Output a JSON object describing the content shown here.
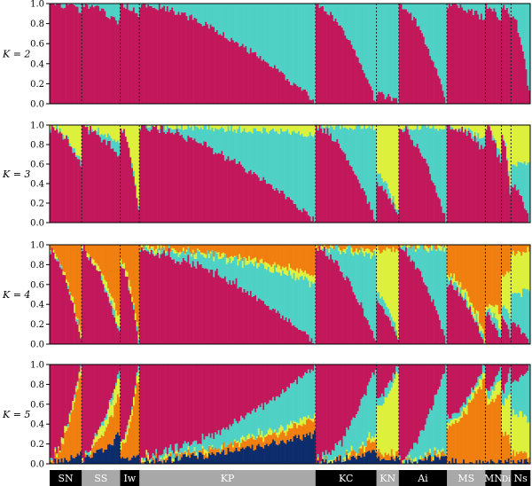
{
  "colors": {
    "magenta": "#c2185b",
    "cyan": "#4fd1c5",
    "yellow": "#dcf03c",
    "orange": "#f07f0f",
    "navy": "#0c2c6b",
    "black": "#000000",
    "gray": "#a8a8a8"
  },
  "chart_data": [
    {
      "type": "bar",
      "stacked": true,
      "panel_label": "K = 2",
      "yticks": [
        "0.0",
        "0.2",
        "0.4",
        "0.6",
        "0.8",
        "1.0"
      ],
      "ylim": [
        0,
        1
      ],
      "series_colors": [
        "#c2185b",
        "#4fd1c5"
      ],
      "populations": [
        {
          "name": "SN",
          "n": 20,
          "mix": [
            [
              0.99,
              0.01
            ],
            [
              0.93,
              0.07
            ]
          ]
        },
        {
          "name": "SS",
          "n": 24,
          "mix": [
            [
              0.99,
              0.01
            ],
            [
              0.8,
              0.2
            ]
          ]
        },
        {
          "name": "Iw",
          "n": 12,
          "mix": [
            [
              0.99,
              0.01
            ],
            [
              0.9,
              0.1
            ]
          ]
        },
        {
          "name": "KP",
          "n": 110,
          "mix": [
            [
              0.99,
              0.01
            ],
            [
              0.02,
              0.98
            ]
          ]
        },
        {
          "name": "KC",
          "n": 38,
          "mix": [
            [
              0.99,
              0.01
            ],
            [
              0.02,
              0.98
            ]
          ]
        },
        {
          "name": "KN",
          "n": 14,
          "mix": [
            [
              0.1,
              0.9
            ],
            [
              0.02,
              0.98
            ]
          ]
        },
        {
          "name": "Ai",
          "n": 30,
          "mix": [
            [
              0.99,
              0.01
            ],
            [
              0.02,
              0.98
            ]
          ]
        },
        {
          "name": "MS",
          "n": 24,
          "mix": [
            [
              0.99,
              0.01
            ],
            [
              0.85,
              0.15
            ]
          ]
        },
        {
          "name": "MN",
          "n": 10,
          "mix": [
            [
              0.99,
              0.01
            ],
            [
              0.8,
              0.2
            ]
          ]
        },
        {
          "name": "Di",
          "n": 6,
          "mix": [
            [
              0.99,
              0.01
            ],
            [
              0.85,
              0.15
            ]
          ]
        },
        {
          "name": "Ns",
          "n": 12,
          "mix": [
            [
              0.9,
              0.1
            ],
            [
              0.1,
              0.9
            ]
          ]
        }
      ]
    },
    {
      "type": "bar",
      "stacked": true,
      "panel_label": "K = 3",
      "yticks": [
        "0.0",
        "0.2",
        "0.4",
        "0.6",
        "0.8",
        "1.0"
      ],
      "ylim": [
        0,
        1
      ],
      "series_colors": [
        "#c2185b",
        "#4fd1c5",
        "#dcf03c"
      ],
      "populations": [
        {
          "name": "SN",
          "n": 20,
          "mix": [
            [
              0.99,
              0.0,
              0.01
            ],
            [
              0.6,
              0.05,
              0.35
            ]
          ]
        },
        {
          "name": "SS",
          "n": 24,
          "mix": [
            [
              0.99,
              0.0,
              0.01
            ],
            [
              0.65,
              0.15,
              0.2
            ]
          ]
        },
        {
          "name": "Iw",
          "n": 12,
          "mix": [
            [
              0.99,
              0.0,
              0.01
            ],
            [
              0.15,
              0.05,
              0.8
            ]
          ]
        },
        {
          "name": "KP",
          "n": 110,
          "mix": [
            [
              0.99,
              0.0,
              0.01
            ],
            [
              0.02,
              0.88,
              0.1
            ]
          ]
        },
        {
          "name": "KC",
          "n": 38,
          "mix": [
            [
              0.99,
              0.0,
              0.01
            ],
            [
              0.02,
              0.95,
              0.03
            ]
          ]
        },
        {
          "name": "KN",
          "n": 14,
          "mix": [
            [
              0.4,
              0.1,
              0.5
            ],
            [
              0.05,
              0.05,
              0.9
            ]
          ]
        },
        {
          "name": "Ai",
          "n": 30,
          "mix": [
            [
              0.99,
              0.0,
              0.01
            ],
            [
              0.02,
              0.95,
              0.03
            ]
          ]
        },
        {
          "name": "MS",
          "n": 24,
          "mix": [
            [
              0.99,
              0.0,
              0.01
            ],
            [
              0.75,
              0.1,
              0.15
            ]
          ]
        },
        {
          "name": "MN",
          "n": 10,
          "mix": [
            [
              0.99,
              0.0,
              0.01
            ],
            [
              0.6,
              0.1,
              0.3
            ]
          ]
        },
        {
          "name": "Di",
          "n": 6,
          "mix": [
            [
              0.9,
              0.0,
              0.1
            ],
            [
              0.3,
              0.1,
              0.6
            ]
          ]
        },
        {
          "name": "Ns",
          "n": 12,
          "mix": [
            [
              0.4,
              0.2,
              0.4
            ],
            [
              0.02,
              0.6,
              0.38
            ]
          ]
        }
      ]
    },
    {
      "type": "bar",
      "stacked": true,
      "panel_label": "K = 4",
      "yticks": [
        "0.0",
        "0.2",
        "0.4",
        "0.6",
        "0.8",
        "1.0"
      ],
      "ylim": [
        0,
        1
      ],
      "series_colors": [
        "#c2185b",
        "#4fd1c5",
        "#dcf03c",
        "#f07f0f"
      ],
      "populations": [
        {
          "name": "SN",
          "n": 20,
          "mix": [
            [
              0.97,
              0.0,
              0.01,
              0.02
            ],
            [
              0.02,
              0.02,
              0.06,
              0.9
            ]
          ]
        },
        {
          "name": "SS",
          "n": 24,
          "mix": [
            [
              0.95,
              0.0,
              0.02,
              0.03
            ],
            [
              0.1,
              0.05,
              0.1,
              0.75
            ]
          ]
        },
        {
          "name": "Iw",
          "n": 12,
          "mix": [
            [
              0.8,
              0.0,
              0.05,
              0.15
            ],
            [
              0.02,
              0.02,
              0.06,
              0.9
            ]
          ]
        },
        {
          "name": "KP",
          "n": 110,
          "mix": [
            [
              0.95,
              0.02,
              0.01,
              0.02
            ],
            [
              0.02,
              0.6,
              0.08,
              0.3
            ]
          ]
        },
        {
          "name": "KC",
          "n": 38,
          "mix": [
            [
              0.99,
              0.0,
              0.0,
              0.01
            ],
            [
              0.02,
              0.85,
              0.05,
              0.08
            ]
          ]
        },
        {
          "name": "KN",
          "n": 14,
          "mix": [
            [
              0.4,
              0.1,
              0.45,
              0.05
            ],
            [
              0.05,
              0.05,
              0.85,
              0.05
            ]
          ]
        },
        {
          "name": "Ai",
          "n": 30,
          "mix": [
            [
              0.99,
              0.0,
              0.0,
              0.01
            ],
            [
              0.02,
              0.93,
              0.03,
              0.02
            ]
          ]
        },
        {
          "name": "MS",
          "n": 24,
          "mix": [
            [
              0.6,
              0.05,
              0.05,
              0.3
            ],
            [
              0.02,
              0.05,
              0.08,
              0.85
            ]
          ]
        },
        {
          "name": "MN",
          "n": 10,
          "mix": [
            [
              0.3,
              0.05,
              0.05,
              0.6
            ],
            [
              0.05,
              0.1,
              0.15,
              0.7
            ]
          ]
        },
        {
          "name": "Di",
          "n": 6,
          "mix": [
            [
              0.3,
              0.1,
              0.3,
              0.3
            ],
            [
              0.05,
              0.2,
              0.5,
              0.25
            ]
          ]
        },
        {
          "name": "Ns",
          "n": 12,
          "mix": [
            [
              0.2,
              0.3,
              0.4,
              0.1
            ],
            [
              0.02,
              0.55,
              0.38,
              0.05
            ]
          ]
        }
      ]
    },
    {
      "type": "bar",
      "stacked": true,
      "panel_label": "K = 5",
      "yticks": [
        "0.0",
        "0.2",
        "0.4",
        "0.6",
        "0.8",
        "1.0"
      ],
      "ylim": [
        0,
        1
      ],
      "series_colors": [
        "#0c2c6b",
        "#f07f0f",
        "#dcf03c",
        "#4fd1c5",
        "#c2185b"
      ],
      "populations": [
        {
          "name": "SN",
          "n": 20,
          "mix": [
            [
              0.02,
              0.01,
              0.01,
              0.0,
              0.96
            ],
            [
              0.1,
              0.8,
              0.08,
              0.02,
              0.0
            ]
          ]
        },
        {
          "name": "SS",
          "n": 24,
          "mix": [
            [
              0.05,
              0.02,
              0.02,
              0.0,
              0.91
            ],
            [
              0.3,
              0.4,
              0.2,
              0.05,
              0.05
            ]
          ]
        },
        {
          "name": "Iw",
          "n": 12,
          "mix": [
            [
              0.05,
              0.1,
              0.05,
              0.0,
              0.8
            ],
            [
              0.1,
              0.8,
              0.08,
              0.02,
              0.0
            ]
          ]
        },
        {
          "name": "KP",
          "n": 110,
          "mix": [
            [
              0.03,
              0.01,
              0.01,
              0.02,
              0.93
            ],
            [
              0.3,
              0.15,
              0.05,
              0.48,
              0.02
            ]
          ]
        },
        {
          "name": "KC",
          "n": 38,
          "mix": [
            [
              0.01,
              0.0,
              0.0,
              0.0,
              0.99
            ],
            [
              0.15,
              0.1,
              0.05,
              0.68,
              0.02
            ]
          ]
        },
        {
          "name": "KN",
          "n": 14,
          "mix": [
            [
              0.05,
              0.05,
              0.45,
              0.1,
              0.35
            ],
            [
              0.05,
              0.05,
              0.85,
              0.05,
              0.0
            ]
          ]
        },
        {
          "name": "Ai",
          "n": 30,
          "mix": [
            [
              0.01,
              0.0,
              0.0,
              0.0,
              0.99
            ],
            [
              0.1,
              0.03,
              0.02,
              0.85,
              0.0
            ]
          ]
        },
        {
          "name": "MS",
          "n": 24,
          "mix": [
            [
              0.02,
              0.35,
              0.05,
              0.05,
              0.53
            ],
            [
              0.02,
              0.85,
              0.08,
              0.05,
              0.0
            ]
          ]
        },
        {
          "name": "MN",
          "n": 10,
          "mix": [
            [
              0.02,
              0.6,
              0.08,
              0.05,
              0.25
            ],
            [
              0.02,
              0.7,
              0.15,
              0.1,
              0.03
            ]
          ]
        },
        {
          "name": "Di",
          "n": 6,
          "mix": [
            [
              0.02,
              0.3,
              0.3,
              0.1,
              0.28
            ],
            [
              0.02,
              0.2,
              0.5,
              0.25,
              0.03
            ]
          ]
        },
        {
          "name": "Ns",
          "n": 12,
          "mix": [
            [
              0.02,
              0.1,
              0.4,
              0.3,
              0.18
            ],
            [
              0.02,
              0.05,
              0.38,
              0.55,
              0.0
            ]
          ]
        }
      ]
    }
  ],
  "population_bar": [
    {
      "name": "SN",
      "n": 20,
      "color": "#000000"
    },
    {
      "name": "SS",
      "n": 24,
      "color": "#a8a8a8"
    },
    {
      "name": "Iw",
      "n": 12,
      "color": "#000000"
    },
    {
      "name": "KP",
      "n": 110,
      "color": "#a8a8a8"
    },
    {
      "name": "KC",
      "n": 38,
      "color": "#000000"
    },
    {
      "name": "KN",
      "n": 14,
      "color": "#a8a8a8"
    },
    {
      "name": "Ai",
      "n": 30,
      "color": "#000000"
    },
    {
      "name": "MS",
      "n": 24,
      "color": "#a8a8a8"
    },
    {
      "name": "MN",
      "n": 10,
      "color": "#000000"
    },
    {
      "name": "Di",
      "n": 6,
      "color": "#a8a8a8"
    },
    {
      "name": "Ns",
      "n": 12,
      "color": "#000000"
    }
  ]
}
